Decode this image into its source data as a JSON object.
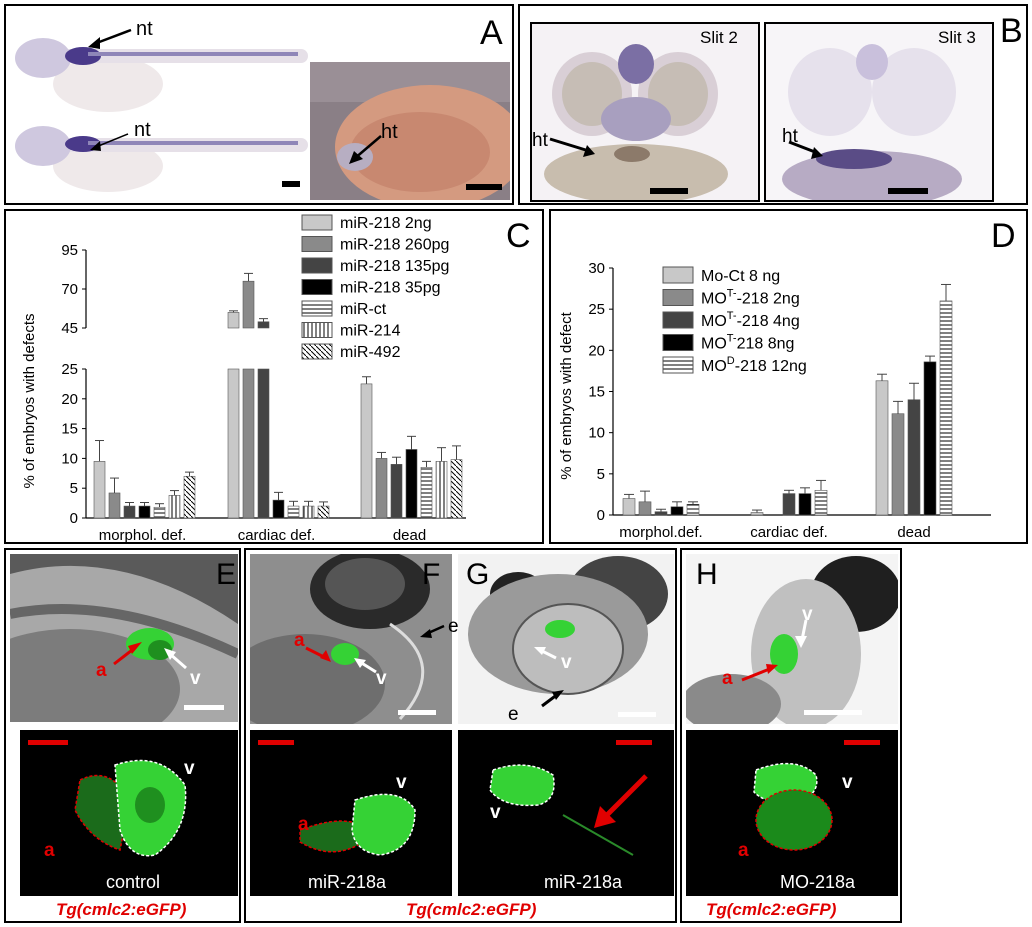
{
  "colors": {
    "stain_purple": "#4a3a8a",
    "gfp_green": "#35d235",
    "annotation_red": "#e00000",
    "embryo_pink": "#d49a80"
  },
  "panelA": {
    "letter": "A",
    "labels": {
      "nt_top": "nt",
      "nt_bottom": "nt",
      "ht": "ht"
    }
  },
  "panelB": {
    "letter": "B",
    "left": {
      "title": "Slit 2",
      "ht": "ht"
    },
    "right": {
      "title": "Slit 3",
      "ht": "ht"
    }
  },
  "panelC": {
    "letter": "C",
    "ylabel": "% of embryos with defects",
    "legend": [
      "miR-218 2ng",
      "miR-218 260pg",
      "miR-218 135pg",
      "miR-218 35pg",
      "miR-ct",
      "miR-214",
      "miR-492"
    ]
  },
  "panelD": {
    "letter": "D",
    "ylabel": "% of embryos with defect",
    "legend": [
      {
        "pre": "Mo-Ct 8 ng",
        "sup": "",
        "post": ""
      },
      {
        "pre": "MO",
        "sup": "T-",
        "post": "-218 2ng"
      },
      {
        "pre": "MO",
        "sup": "T-",
        "post": "-218 4ng"
      },
      {
        "pre": "MO",
        "sup": "T-",
        "post": "218 8ng"
      },
      {
        "pre": "MO",
        "sup": "D",
        "post": "-218 12ng"
      }
    ]
  },
  "chart_data": [
    {
      "type": "bar",
      "categories": [
        "morphol. def.",
        "cardiac def.",
        "dead"
      ],
      "series": [
        {
          "name": "miR-218 2ng",
          "values": [
            9.5,
            55,
            22.5
          ]
        },
        {
          "name": "miR-218 260pg",
          "values": [
            4.2,
            75,
            10
          ]
        },
        {
          "name": "miR-218 135pg",
          "values": [
            2,
            49,
            9
          ]
        },
        {
          "name": "miR-218 35pg",
          "values": [
            2,
            3,
            11.5
          ]
        },
        {
          "name": "miR-ct",
          "values": [
            1.8,
            2,
            8.5
          ]
        },
        {
          "name": "miR-214",
          "values": [
            3.8,
            2,
            9.5
          ]
        },
        {
          "name": "miR-492",
          "values": [
            7,
            2,
            9.8
          ]
        }
      ],
      "errors": [
        [
          3.5,
          1,
          1.2
        ],
        [
          2.5,
          5,
          1
        ],
        [
          0.6,
          2,
          1.2
        ],
        [
          0.6,
          1.3,
          2.2
        ],
        [
          0.6,
          0.8,
          1
        ],
        [
          0.8,
          0.8,
          2.3
        ],
        [
          0.7,
          0.7,
          2.3
        ]
      ],
      "ylabel": "% of embryos with defects",
      "yticks_lower": [
        0,
        5,
        10,
        15,
        20,
        25
      ],
      "yticks_upper": [
        45,
        70,
        95
      ],
      "axis_break": [
        25,
        45
      ]
    },
    {
      "type": "bar",
      "categories": [
        "morphol.def.",
        "cardiac def.",
        "dead"
      ],
      "series": [
        {
          "name": "Mo-Ct 8 ng",
          "values": [
            2,
            0.3,
            16.3
          ]
        },
        {
          "name": "MOT--218 2ng",
          "values": [
            1.6,
            0,
            12.3
          ]
        },
        {
          "name": "MOT--218 4ng",
          "values": [
            0.4,
            2.6,
            14
          ]
        },
        {
          "name": "MOT-218 8ng",
          "values": [
            1,
            2.6,
            18.6
          ]
        },
        {
          "name": "MOD-218 12ng",
          "values": [
            1.3,
            3,
            26
          ]
        }
      ],
      "errors": [
        [
          0.5,
          0.3,
          0.8
        ],
        [
          1.3,
          0,
          1.5
        ],
        [
          0.3,
          0.4,
          2
        ],
        [
          0.6,
          0.7,
          0.7
        ],
        [
          0.3,
          1.2,
          2
        ]
      ],
      "ylabel": "% of embryos with defect",
      "yticks": [
        0,
        5,
        10,
        15,
        20,
        25,
        30
      ],
      "ylim": [
        0,
        30
      ]
    }
  ],
  "panelE": {
    "letter": "E",
    "top": {
      "a": "a",
      "v": "v"
    },
    "bottom": {
      "v": "v",
      "a": "a",
      "caption": "control"
    },
    "tg": "Tg(cmlc2:eGFP)"
  },
  "panelF": {
    "letter": "F",
    "top": {
      "a": "a",
      "v": "v",
      "e": "e"
    },
    "bottom": {
      "v": "v",
      "a": "a",
      "caption": "miR-218a"
    }
  },
  "panelG": {
    "letter": "G",
    "top": {
      "v": "v",
      "e": "e"
    },
    "bottom": {
      "v": "v",
      "caption": "miR-218a"
    }
  },
  "panelFG_tg": "Tg(cmlc2:eGFP)",
  "panelH": {
    "letter": "H",
    "top": {
      "v": "v",
      "a": "a"
    },
    "bottom": {
      "v": "v",
      "a": "a",
      "caption": "MO-218a"
    },
    "tg": "Tg(cmlc2:eGFP)"
  }
}
